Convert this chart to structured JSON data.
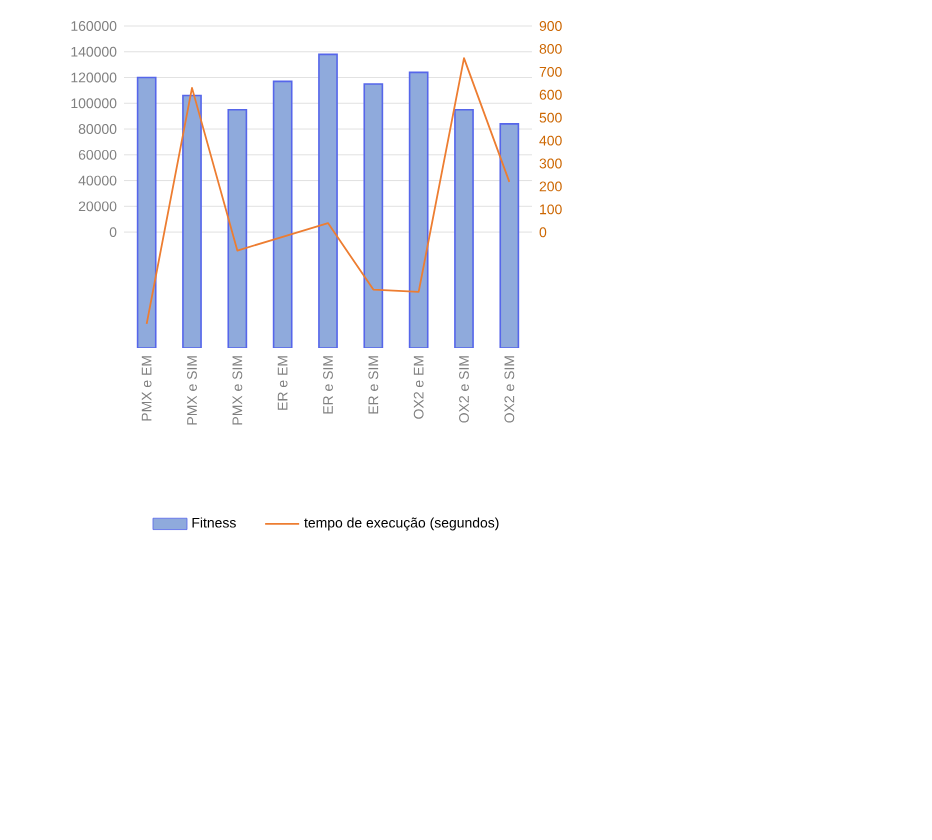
{
  "chart_data": {
    "type": "bar",
    "categories": [
      "PMX e EM",
      "PMX e SIM",
      "PMX e SIM",
      "ER e EM",
      "ER e SIM",
      "ER e SIM",
      "OX2 e EM",
      "OX2 e SIM",
      "OX2 e SIM"
    ],
    "series": [
      {
        "name": "Fitness",
        "color": "#8faadc",
        "base": [
          -90000,
          -90000,
          -90000,
          -90000,
          -90000,
          -90000,
          -90000,
          -90000,
          -90000
        ],
        "values": [
          210000,
          196000,
          185000,
          207000,
          228000,
          205000,
          214000,
          185000,
          174000
        ]
      },
      {
        "name": "tempo de execução (segundos)",
        "type": "line",
        "axis": "y2",
        "color": "#ed7d31",
        "values": [
          -400,
          630,
          -80,
          -20,
          40,
          -250,
          -260,
          760,
          220
        ]
      }
    ],
    "ylim": [
      -90000,
      160000
    ],
    "yticks": [
      0,
      20000,
      40000,
      60000,
      80000,
      100000,
      120000,
      140000,
      160000
    ],
    "y2lim": [
      -505,
      900
    ],
    "y2ticks": [
      0,
      100,
      200,
      300,
      400,
      500,
      600,
      700,
      800,
      900
    ],
    "grid": "y",
    "legend": "bottom"
  }
}
